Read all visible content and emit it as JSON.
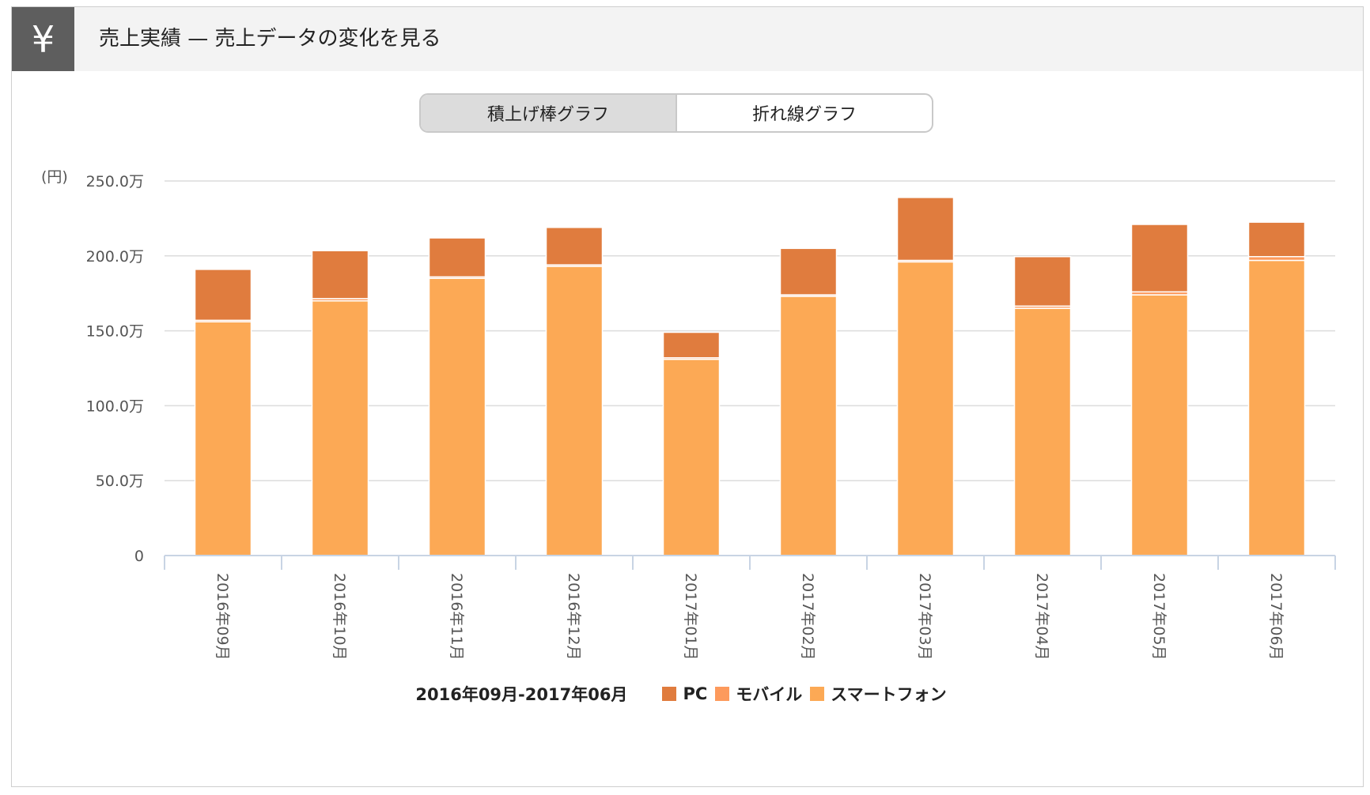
{
  "header": {
    "icon": "yen-icon",
    "icon_glyph": "¥",
    "title": "売上実績 — 売上データの変化を見る"
  },
  "toggle": {
    "options": [
      "積上げ棒グラフ",
      "折れ線グラフ"
    ],
    "selected": "積上げ棒グラフ"
  },
  "chart_data": {
    "type": "bar",
    "stacked": true,
    "yunit": "(円)",
    "ylim": [
      0,
      2500000
    ],
    "yticks": [
      {
        "value": 0,
        "label": "0"
      },
      {
        "value": 500000,
        "label": "50.0万"
      },
      {
        "value": 1000000,
        "label": "100.0万"
      },
      {
        "value": 1500000,
        "label": "150.0万"
      },
      {
        "value": 2000000,
        "label": "200.0万"
      },
      {
        "value": 2500000,
        "label": "250.0万"
      }
    ],
    "categories": [
      "2016年09月",
      "2016年10月",
      "2016年11月",
      "2016年12月",
      "2017年01月",
      "2017年02月",
      "2017年03月",
      "2017年04月",
      "2017年05月",
      "2017年06月"
    ],
    "series": [
      {
        "name": "スマートフォン",
        "color": "#fca955",
        "values": [
          1560000,
          1700000,
          1850000,
          1930000,
          1310000,
          1730000,
          1960000,
          1650000,
          1740000,
          1970000
        ]
      },
      {
        "name": "モバイル",
        "color": "#fd9a5c",
        "values": [
          10000,
          15000,
          10000,
          10000,
          10000,
          10000,
          10000,
          15000,
          20000,
          25000
        ]
      },
      {
        "name": "PC",
        "color": "#e07c3e",
        "values": [
          340000,
          320000,
          260000,
          250000,
          170000,
          310000,
          420000,
          330000,
          450000,
          230000
        ]
      }
    ],
    "legend_order": [
      "PC",
      "モバイル",
      "スマートフォン"
    ],
    "period_label": "2016年09月-2017年06月",
    "grid": true,
    "legend_position": "bottom"
  }
}
